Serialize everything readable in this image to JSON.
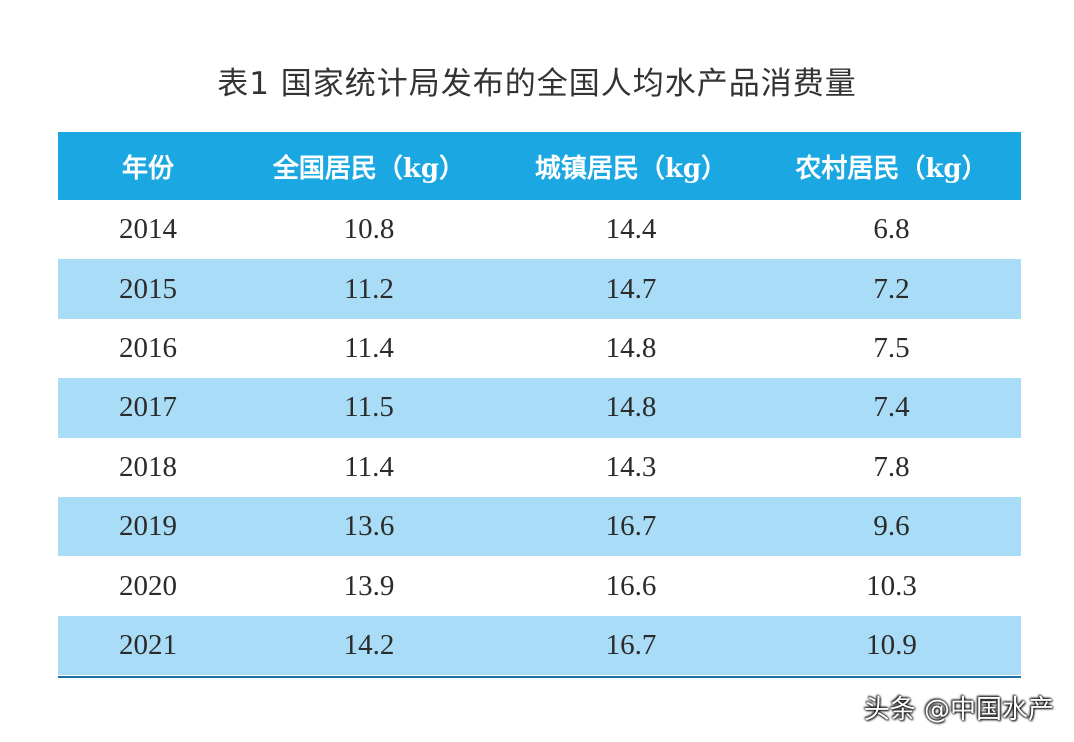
{
  "title": "表1 国家统计局发布的全国人均水产品消费量",
  "headers": [
    "年份",
    "全国居民（kg）",
    "城镇居民（kg）",
    "农村居民（kg）"
  ],
  "rows": [
    [
      "2014",
      "10.8",
      "14.4",
      "6.8"
    ],
    [
      "2015",
      "11.2",
      "14.7",
      "7.2"
    ],
    [
      "2016",
      "11.4",
      "14.8",
      "7.5"
    ],
    [
      "2017",
      "11.5",
      "14.8",
      "7.4"
    ],
    [
      "2018",
      "11.4",
      "14.3",
      "7.8"
    ],
    [
      "2019",
      "13.6",
      "16.7",
      "9.6"
    ],
    [
      "2020",
      "13.9",
      "16.6",
      "10.3"
    ],
    [
      "2021",
      "14.2",
      "16.7",
      "10.9"
    ]
  ],
  "watermark": "头条 @中国水产",
  "colors": {
    "header_bg": "#1aa7e2",
    "stripe_bg": "#a9dcf6",
    "rule": "#1e6fa3"
  },
  "chart_data": {
    "type": "table",
    "title": "表1 国家统计局发布的全国人均水产品消费量",
    "columns": [
      "年份",
      "全国居民（kg）",
      "城镇居民（kg）",
      "农村居民（kg）"
    ],
    "categories": [
      "2014",
      "2015",
      "2016",
      "2017",
      "2018",
      "2019",
      "2020",
      "2021"
    ],
    "series": [
      {
        "name": "全国居民（kg）",
        "values": [
          10.8,
          11.2,
          11.4,
          11.5,
          11.4,
          13.6,
          13.9,
          14.2
        ]
      },
      {
        "name": "城镇居民（kg）",
        "values": [
          14.4,
          14.7,
          14.8,
          14.8,
          14.3,
          16.7,
          16.6,
          16.7
        ]
      },
      {
        "name": "农村居民（kg）",
        "values": [
          6.8,
          7.2,
          7.5,
          7.4,
          7.8,
          9.6,
          10.3,
          10.9
        ]
      }
    ]
  }
}
